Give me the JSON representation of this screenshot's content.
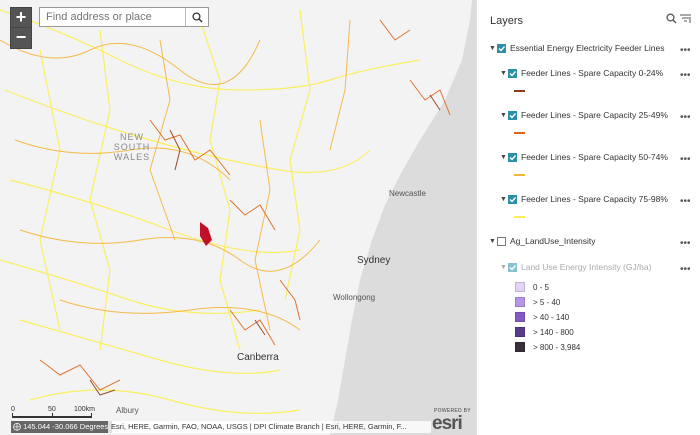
{
  "search": {
    "placeholder": "Find address or place"
  },
  "zoom": {
    "in_label": "+",
    "out_label": "−"
  },
  "map_labels": {
    "region": "NEW SOUTH WALES",
    "newcastle": "Newcastle",
    "sydney": "Sydney",
    "wollongong": "Wollongong",
    "canberra": "Canberra",
    "albury": "Albury"
  },
  "scalebar": {
    "t0": "0",
    "t1": "50",
    "t2": "100km"
  },
  "coords": "145.044 -30.066 Degrees",
  "attribution": "Esri, HERE, Garmin, FAO, NOAA, USGS | DPI Climate Branch | Esri, HERE, Garmin, F...",
  "esri": {
    "powered": "POWERED BY",
    "word": "esri"
  },
  "panel": {
    "title": "Layers",
    "layers": [
      {
        "name": "Essential Energy Electricity Feeder Lines",
        "checked": true
      },
      {
        "name": "Feeder Lines - Spare Capacity 0-24%",
        "checked": true,
        "color": "#8b3a1a"
      },
      {
        "name": "Feeder Lines - Spare Capacity 25-49%",
        "checked": true,
        "color": "#d9661a"
      },
      {
        "name": "Feeder Lines - Spare Capacity 50-74%",
        "checked": true,
        "color": "#f5b43a"
      },
      {
        "name": "Feeder Lines - Spare Capacity 75-98%",
        "checked": true,
        "color": "#fbee5a"
      },
      {
        "name": "Ag_LandUse_Intensity",
        "checked": false
      },
      {
        "name": "Land Use Energy Intensity (GJ/ha)",
        "checked": true
      }
    ],
    "legend": [
      {
        "label": "0 - 5",
        "color": "#e3d3f7"
      },
      {
        "label": "> 5 - 40",
        "color": "#b795e6"
      },
      {
        "label": "> 40 - 140",
        "color": "#8459c6"
      },
      {
        "label": "> 140 - 800",
        "color": "#5a3a8c"
      },
      {
        "label": "> 800 - 3,984",
        "color": "#3a2f3a"
      }
    ]
  }
}
